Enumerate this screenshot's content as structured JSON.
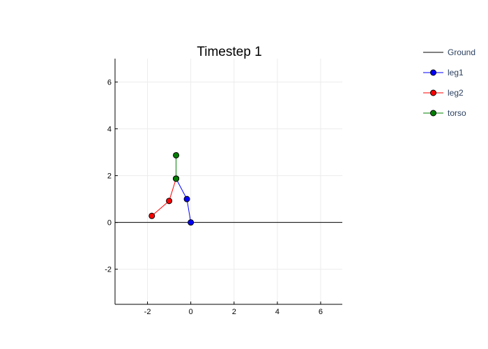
{
  "chart_data": {
    "type": "line",
    "title": "Timestep 1",
    "xlabel": "",
    "ylabel": "",
    "xlim": [
      -3.5,
      7
    ],
    "ylim": [
      -3.5,
      7
    ],
    "xticks": [
      "-2",
      "0",
      "2",
      "4",
      "6"
    ],
    "yticks": [
      "-2",
      "0",
      "2",
      "4",
      "6"
    ],
    "grid": true,
    "legend_position": "top-right, outside plot",
    "series": [
      {
        "name": "Ground",
        "color": "#000000",
        "markers": false,
        "points": [
          [
            -3.5,
            0
          ],
          [
            7,
            0
          ]
        ]
      },
      {
        "name": "leg1",
        "color": "#0000ff",
        "markers": true,
        "points": [
          [
            0,
            0
          ],
          [
            -0.18,
            1.0
          ],
          [
            -0.68,
            1.87
          ]
        ]
      },
      {
        "name": "leg2",
        "color": "#ff0000",
        "markers": true,
        "points": [
          [
            -1.8,
            0.28
          ],
          [
            -1.0,
            0.92
          ],
          [
            -0.68,
            1.87
          ]
        ]
      },
      {
        "name": "torso",
        "color": "#008000",
        "markers": true,
        "points": [
          [
            -0.68,
            1.87
          ],
          [
            -0.68,
            2.87
          ]
        ]
      }
    ]
  }
}
